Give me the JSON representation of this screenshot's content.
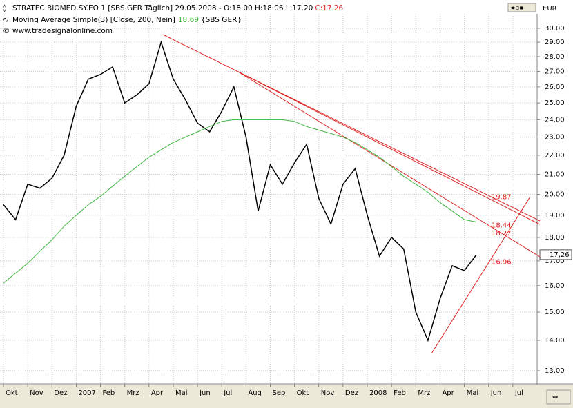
{
  "chart_data": {
    "type": "line",
    "title": "STRATEC BIOMED.SY.EO 1 [SBS GER  Täglich] 29.05.2008 - O:18.00 H:18.06 L:17.20",
    "close_label": "C:17.26",
    "indicator_source": "{SBS GER}",
    "website": "www.tradesignalonline.com",
    "currency": "EUR",
    "last_price_label": "17,26",
    "log_scale": true,
    "grid": true,
    "categories": [
      "Okt",
      null,
      "Nov",
      null,
      "Dez",
      null,
      "2007",
      null,
      "Feb",
      null,
      "Mrz",
      null,
      "Apr",
      null,
      "Mai",
      null,
      "Jun",
      null,
      "Jul",
      null,
      "Aug",
      null,
      "Sep",
      null,
      "Okt",
      null,
      "Nov",
      null,
      "Dez",
      null,
      "2008",
      null,
      "Feb",
      null,
      "Mrz",
      null,
      "Apr",
      null,
      "Mai",
      null,
      "Jun",
      null,
      "Jul",
      null
    ],
    "series": [
      {
        "name": "STRATEC BIOMED.SY.EO 1",
        "color": "#000000",
        "values": [
          19.5,
          18.8,
          20.5,
          20.3,
          20.8,
          22.0,
          24.8,
          26.5,
          26.8,
          27.3,
          25.0,
          25.5,
          26.2,
          29.0,
          26.5,
          25.2,
          23.8,
          23.3,
          24.5,
          26.0,
          23.0,
          19.2,
          21.5,
          20.5,
          21.6,
          22.6,
          19.8,
          18.6,
          20.5,
          21.3,
          19.0,
          17.2,
          18.0,
          17.5,
          15.0,
          14.0,
          15.5,
          16.8,
          16.6,
          17.26,
          null,
          null,
          null,
          null
        ]
      },
      {
        "name": "Moving Average Simple(3) [Close, 200, Nein]",
        "color": "#3cb43c",
        "values": [
          16.1,
          16.5,
          16.9,
          17.4,
          17.9,
          18.5,
          19.0,
          19.5,
          19.9,
          20.4,
          20.9,
          21.4,
          21.9,
          22.3,
          22.7,
          23.0,
          23.3,
          23.6,
          23.9,
          24.0,
          24.0,
          24.0,
          24.0,
          24.0,
          23.9,
          23.6,
          23.4,
          23.2,
          23.0,
          22.7,
          22.3,
          21.9,
          21.4,
          20.9,
          20.5,
          20.1,
          19.6,
          19.2,
          18.8,
          18.69,
          null,
          null,
          null,
          null
        ]
      }
    ],
    "annotations": [
      19.87,
      18.44,
      18.27,
      16.96
    ],
    "annotation_color": "#dd2222",
    "ylim": [
      12.59,
      31.08
    ],
    "yticks": [
      {
        "value": 13,
        "label": "13.00"
      },
      {
        "value": 14,
        "label": "14.00"
      },
      {
        "value": 15,
        "label": "15.00"
      },
      {
        "value": 16,
        "label": "16.00"
      },
      {
        "value": 17,
        "label": "17.00"
      },
      {
        "value": 18,
        "label": "18.00"
      },
      {
        "value": 19,
        "label": "19.00"
      },
      {
        "value": 20,
        "label": "20.00"
      },
      {
        "value": 21,
        "label": "21.00"
      },
      {
        "value": 22,
        "label": "22.00"
      },
      {
        "value": 23,
        "label": "23.00"
      },
      {
        "value": 24,
        "label": "24.00"
      },
      {
        "value": 25,
        "label": "25.00"
      },
      {
        "value": 26,
        "label": "26.00"
      },
      {
        "value": 27,
        "label": "27.00"
      },
      {
        "value": 28,
        "label": "28.00"
      },
      {
        "value": 29,
        "label": "29.00"
      },
      {
        "value": 30,
        "label": "30.00"
      }
    ]
  }
}
